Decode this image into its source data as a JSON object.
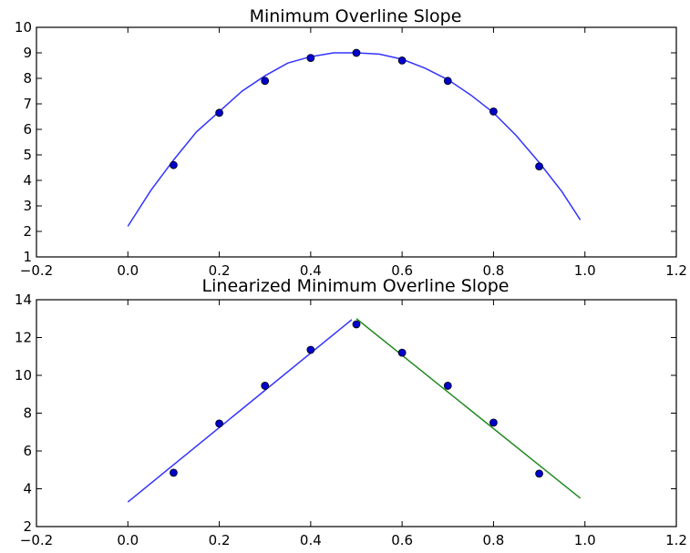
{
  "chart_data": [
    {
      "type": "scatter",
      "title": "Minimum Overline Slope",
      "xlabel": "",
      "ylabel": "",
      "xlim": [
        -0.2,
        1.2
      ],
      "ylim": [
        1,
        10
      ],
      "xticks": [
        "−0.2",
        "0.0",
        "0.2",
        "0.4",
        "0.6",
        "0.8",
        "1.0",
        "1.2"
      ],
      "yticks": [
        "1",
        "2",
        "3",
        "4",
        "5",
        "6",
        "7",
        "8",
        "9",
        "10"
      ],
      "grid": false,
      "points": {
        "color": "#0000cc",
        "x": [
          0.1,
          0.2,
          0.3,
          0.4,
          0.5,
          0.6,
          0.7,
          0.8,
          0.9
        ],
        "y": [
          4.6,
          6.65,
          7.9,
          8.8,
          9.0,
          8.7,
          7.9,
          6.7,
          4.55
        ]
      },
      "lines": [
        {
          "color": "#3333ff",
          "x": [
            0.0,
            0.05,
            0.1,
            0.15,
            0.2,
            0.25,
            0.3,
            0.35,
            0.4,
            0.45,
            0.5,
            0.55,
            0.6,
            0.65,
            0.7,
            0.75,
            0.8,
            0.85,
            0.9,
            0.95,
            0.99
          ],
          "y": [
            2.2,
            3.6,
            4.8,
            5.9,
            6.7,
            7.5,
            8.1,
            8.6,
            8.85,
            9.0,
            9.0,
            8.95,
            8.75,
            8.4,
            7.95,
            7.35,
            6.65,
            5.75,
            4.7,
            3.55,
            2.45
          ]
        }
      ]
    },
    {
      "type": "scatter",
      "title": "Linearized Minimum Overline Slope",
      "xlabel": "",
      "ylabel": "",
      "xlim": [
        -0.2,
        1.2
      ],
      "ylim": [
        2,
        14
      ],
      "xticks": [
        "−0.2",
        "0.0",
        "0.2",
        "0.4",
        "0.6",
        "0.8",
        "1.0",
        "1.2"
      ],
      "yticks": [
        "2",
        "4",
        "6",
        "8",
        "10",
        "12",
        "14"
      ],
      "grid": false,
      "points": {
        "color": "#0000cc",
        "x": [
          0.1,
          0.2,
          0.3,
          0.4,
          0.5,
          0.6,
          0.7,
          0.8,
          0.9
        ],
        "y": [
          4.85,
          7.45,
          9.45,
          11.35,
          12.7,
          11.2,
          9.45,
          7.5,
          4.8
        ]
      },
      "lines": [
        {
          "color": "#3333ff",
          "x": [
            0.0,
            0.49
          ],
          "y": [
            3.3,
            12.95
          ]
        },
        {
          "color": "#228b22",
          "x": [
            0.5,
            0.99
          ],
          "y": [
            13.0,
            3.5
          ]
        }
      ]
    }
  ]
}
